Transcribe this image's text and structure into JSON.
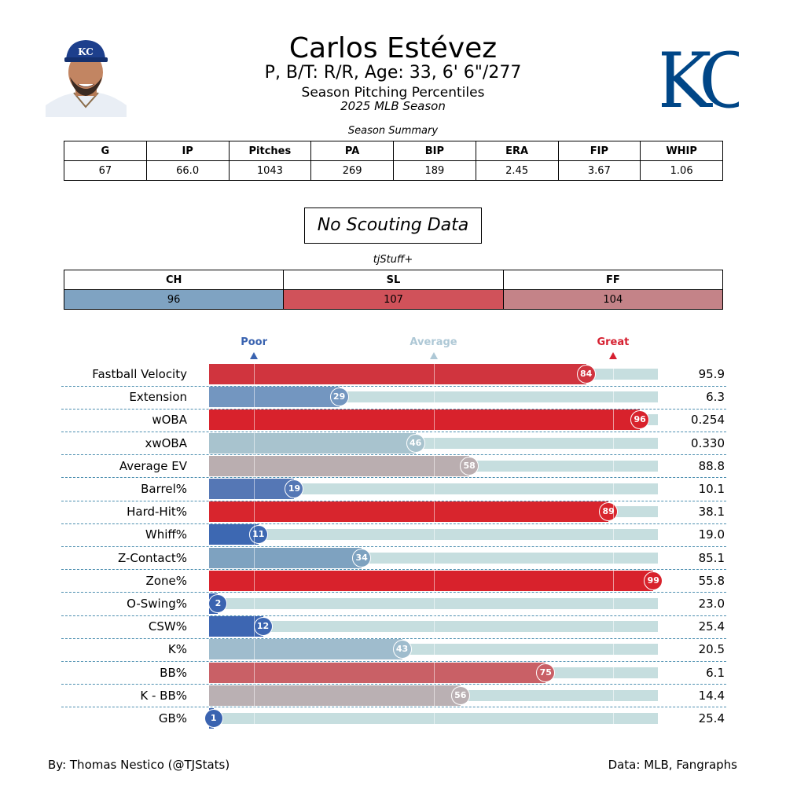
{
  "player": {
    "name": "Carlos Estévez",
    "info": "P, B/T: R/R, Age: 33, 6' 6\"/277",
    "subtitle": "Season Pitching Percentiles",
    "season": "2025 MLB Season",
    "logo_text": "KC",
    "cap_text": "KC"
  },
  "summary": {
    "caption": "Season Summary",
    "headers": [
      "G",
      "IP",
      "Pitches",
      "PA",
      "BIP",
      "ERA",
      "FIP",
      "WHIP"
    ],
    "values": [
      "67",
      "66.0",
      "1043",
      "269",
      "189",
      "2.45",
      "3.67",
      "1.06"
    ]
  },
  "scouting": {
    "text": "No Scouting Data"
  },
  "tjstuff": {
    "caption": "tjStuff+",
    "headers": [
      "CH",
      "SL",
      "FF"
    ],
    "values": [
      "96",
      "107",
      "104"
    ],
    "colors": [
      "#7fa3c2",
      "#d0525a",
      "#c48388"
    ]
  },
  "markers": {
    "poor": {
      "label": "Poor",
      "color": "#3a63b0",
      "percentile": 10
    },
    "average": {
      "label": "Average",
      "color": "#aec8d6",
      "percentile": 50
    },
    "great": {
      "label": "Great",
      "color": "#d62030",
      "percentile": 90
    }
  },
  "chart_data": {
    "type": "bar",
    "orientation": "horizontal",
    "xlim": [
      0,
      100
    ],
    "categories": [
      "Fastball Velocity",
      "Extension",
      "wOBA",
      "xwOBA",
      "Average EV",
      "Barrel%",
      "Hard-Hit%",
      "Whiff%",
      "Z-Contact%",
      "Zone%",
      "O-Swing%",
      "CSW%",
      "K%",
      "BB%",
      "K - BB%",
      "GB%"
    ],
    "percentiles": [
      84,
      29,
      96,
      46,
      58,
      19,
      89,
      11,
      34,
      99,
      2,
      12,
      43,
      75,
      56,
      1
    ],
    "stat_values": [
      "95.9",
      "6.3",
      "0.254",
      "0.330",
      "88.8",
      "10.1",
      "38.1",
      "19.0",
      "85.1",
      "55.8",
      "23.0",
      "25.4",
      "20.5",
      "6.1",
      "14.4",
      "25.4"
    ],
    "colors": [
      "#d0343e",
      "#7396c0",
      "#d8222c",
      "#a8c3ce",
      "#baaeb0",
      "#5577b5",
      "#d8252d",
      "#3d68b2",
      "#7ea2c0",
      "#d8222c",
      "#3a63b0",
      "#3d66b2",
      "#9fbccd",
      "#c96066",
      "#bab0b3",
      "#3a63b0"
    ]
  },
  "footer": {
    "left": "By: Thomas Nestico (@TJStats)",
    "right": "Data: MLB, Fangraphs"
  }
}
